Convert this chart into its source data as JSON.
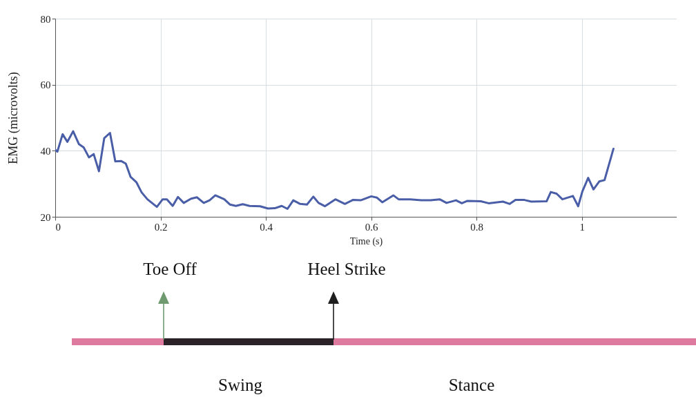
{
  "chart_data": {
    "type": "line",
    "xlabel": "Time (s)",
    "ylabel": "EMG (microvolts)",
    "x": [
      0,
      0.004,
      0.014,
      0.023,
      0.034,
      0.045,
      0.054,
      0.064,
      0.073,
      0.083,
      0.093,
      0.104,
      0.114,
      0.125,
      0.134,
      0.143,
      0.154,
      0.164,
      0.175,
      0.193,
      0.204,
      0.212,
      0.223,
      0.233,
      0.244,
      0.258,
      0.269,
      0.282,
      0.293,
      0.304,
      0.321,
      0.332,
      0.343,
      0.356,
      0.369,
      0.389,
      0.404,
      0.417,
      0.43,
      0.441,
      0.452,
      0.465,
      0.478,
      0.49,
      0.5,
      0.512,
      0.532,
      0.55,
      0.565,
      0.58,
      0.6,
      0.611,
      0.621,
      0.642,
      0.652,
      0.674,
      0.695,
      0.713,
      0.73,
      0.743,
      0.761,
      0.772,
      0.782,
      0.808,
      0.823,
      0.85,
      0.863,
      0.874,
      0.891,
      0.904,
      0.933,
      0.941,
      0.952,
      0.963,
      0.983,
      0.993,
      1.001,
      1.012,
      1.022,
      1.033,
      1.043,
      1.06
    ],
    "series": [
      {
        "color": "#4a5ea8",
        "values": [
          40.3,
          39.7,
          45,
          42.7,
          45.9,
          42,
          41,
          38,
          39,
          33.8,
          43.8,
          45.4,
          36.8,
          36.9,
          36.1,
          32.1,
          30.5,
          27.4,
          25.3,
          23,
          25.3,
          25.3,
          23.3,
          26,
          24.2,
          25.5,
          25.9,
          24.2,
          25,
          26.5,
          25.3,
          23.7,
          23.3,
          23.8,
          23.3,
          23.2,
          22.5,
          22.6,
          23.3,
          22.4,
          25,
          23.9,
          23.7,
          26.1,
          24.2,
          23.2,
          25.3,
          23.9,
          25.1,
          25,
          26.2,
          25.8,
          24.4,
          26.5,
          25.3,
          25.3,
          25,
          25,
          25.3,
          24.2,
          25,
          24.1,
          24.8,
          24.7,
          24.1,
          24.6,
          23.9,
          25.1,
          25.1,
          24.6,
          24.7,
          27.5,
          27,
          25.3,
          26.3,
          23.2,
          27.7,
          31.8,
          28.3,
          30.7,
          31.1,
          40.6
        ]
      }
    ],
    "xlim": [
      0,
      1.18
    ],
    "xticks": [
      0,
      0.2,
      0.4,
      0.6,
      0.8,
      1
    ],
    "ylim": [
      20,
      80
    ],
    "yticks": [
      20,
      40,
      60,
      80
    ],
    "grid": true,
    "line_style": "solid",
    "annotations": [
      "Toe Off",
      "Heel Strike",
      "Swing",
      "Stance"
    ]
  }
}
